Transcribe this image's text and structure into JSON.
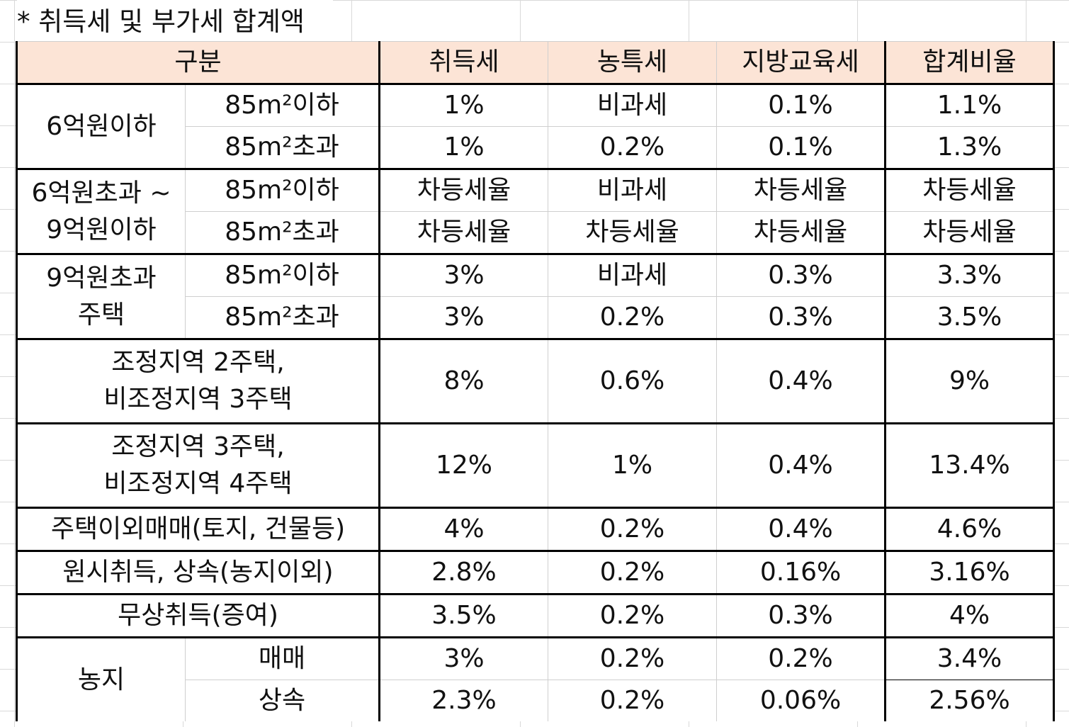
{
  "sheet": {
    "title": "* 취득세 및 부가세 합계액"
  },
  "table": {
    "headers": {
      "category": "구분",
      "acq_tax": "취득세",
      "farm_tax": "농특세",
      "edu_tax": "지방교육세",
      "total_rate": "합계비율"
    },
    "groups": {
      "under6": {
        "label": "6억원이하"
      },
      "mid": {
        "label_line1": "6억원초과 ~",
        "label_line2": "9억원이하"
      },
      "over9": {
        "label_line1": "9억원초과",
        "label_line2": "주택"
      },
      "reg2": {
        "label_line1": "조정지역 2주택,",
        "label_line2": "비조정지역 3주택"
      },
      "reg3": {
        "label_line1": "조정지역 3주택,",
        "label_line2": "비조정지역 4주택"
      },
      "nonhouse": {
        "label": "주택이외매매(토지, 건물등)"
      },
      "original": {
        "label": "원시취득, 상속(농지이외)"
      },
      "gift": {
        "label": "무상취득(증여)"
      },
      "farmland": {
        "label": "농지"
      }
    },
    "rows": [
      {
        "sub": "85m²이하",
        "acq": "1%",
        "farm": "비과세",
        "edu": "0.1%",
        "total": "1.1%"
      },
      {
        "sub": "85m²초과",
        "acq": "1%",
        "farm": "0.2%",
        "edu": "0.1%",
        "total": "1.3%"
      },
      {
        "sub": "85m²이하",
        "acq": "차등세율",
        "farm": "비과세",
        "edu": "차등세율",
        "total": "차등세율"
      },
      {
        "sub": "85m²초과",
        "acq": "차등세율",
        "farm": "차등세율",
        "edu": "차등세율",
        "total": "차등세율"
      },
      {
        "sub": "85m²이하",
        "acq": "3%",
        "farm": "비과세",
        "edu": "0.3%",
        "total": "3.3%"
      },
      {
        "sub": "85m²초과",
        "acq": "3%",
        "farm": "0.2%",
        "edu": "0.3%",
        "total": "3.5%"
      },
      {
        "acq": "8%",
        "farm": "0.6%",
        "edu": "0.4%",
        "total": "9%"
      },
      {
        "acq": "12%",
        "farm": "1%",
        "edu": "0.4%",
        "total": "13.4%"
      },
      {
        "acq": "4%",
        "farm": "0.2%",
        "edu": "0.4%",
        "total": "4.6%"
      },
      {
        "acq": "2.8%",
        "farm": "0.2%",
        "edu": "0.16%",
        "total": "3.16%"
      },
      {
        "acq": "3.5%",
        "farm": "0.2%",
        "edu": "0.3%",
        "total": "4%"
      },
      {
        "sub": "매매",
        "acq": "3%",
        "farm": "0.2%",
        "edu": "0.2%",
        "total": "3.4%"
      },
      {
        "sub": "상속",
        "acq": "2.3%",
        "farm": "0.2%",
        "edu": "0.06%",
        "total": "2.56%"
      }
    ]
  }
}
